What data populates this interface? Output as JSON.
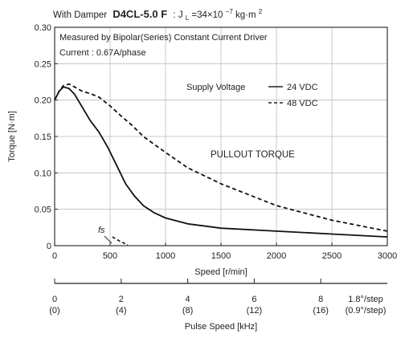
{
  "chart_data": {
    "type": "line",
    "title": {
      "prefix": "With Damper",
      "model": "D4CL-5.0 F",
      "inertia": "J",
      "inertia_sub": "L",
      "inertia_eq": "=34×10",
      "inertia_exp": "−7",
      "inertia_unit": "kg·m",
      "inertia_unit_exp": "2"
    },
    "notes": [
      "Measured by Bipolar(Series) Constant Current Driver",
      "Current : 0.67A/phase"
    ],
    "xlabel": "Speed  [r/min]",
    "ylabel": "Torque  [N·m]",
    "xlim": [
      0,
      3000
    ],
    "ylim": [
      0,
      0.3
    ],
    "x_ticks": [
      "0",
      "500",
      "1000",
      "1500",
      "2000",
      "2500",
      "3000"
    ],
    "y_ticks": [
      "0",
      "0.05",
      "0.10",
      "0.15",
      "0.20",
      "0.25",
      "0.30"
    ],
    "grid": true,
    "legend": {
      "title": "Supply Voltage",
      "position": "upper-right",
      "entries": [
        "24 VDC",
        "48 VDC"
      ]
    },
    "annotations": [
      "PULLOUT TORQUE",
      "fs"
    ],
    "series": [
      {
        "name": "24 VDC",
        "style": "solid",
        "x": [
          0,
          40,
          80,
          130,
          180,
          250,
          320,
          400,
          480,
          560,
          640,
          720,
          800,
          900,
          1000,
          1200,
          1500,
          2000,
          2500,
          3000
        ],
        "y": [
          0.2,
          0.212,
          0.218,
          0.216,
          0.208,
          0.19,
          0.172,
          0.156,
          0.135,
          0.11,
          0.085,
          0.068,
          0.055,
          0.045,
          0.038,
          0.03,
          0.024,
          0.02,
          0.016,
          0.012
        ]
      },
      {
        "name": "48 VDC",
        "style": "dashed",
        "x": [
          0,
          40,
          80,
          130,
          180,
          250,
          320,
          400,
          500,
          600,
          700,
          800,
          1000,
          1200,
          1500,
          2000,
          2500,
          3000
        ],
        "y": [
          0.2,
          0.212,
          0.22,
          0.222,
          0.218,
          0.212,
          0.209,
          0.204,
          0.192,
          0.178,
          0.165,
          0.15,
          0.128,
          0.107,
          0.085,
          0.055,
          0.035,
          0.02
        ]
      }
    ],
    "fs_curve": {
      "x": [
        520,
        590,
        660
      ],
      "y": [
        0.012,
        0.006,
        0.001
      ]
    },
    "secondary_axis": {
      "label": "Pulse Speed  [kHz]",
      "ticks": [
        {
          "x": 0,
          "top": "0",
          "bottom": "(0)"
        },
        {
          "x": 600,
          "top": "2",
          "bottom": "(4)"
        },
        {
          "x": 1200,
          "top": "4",
          "bottom": "(8)"
        },
        {
          "x": 1800,
          "top": "6",
          "bottom": "(12)"
        },
        {
          "x": 2400,
          "top": "8",
          "bottom": "(16)"
        }
      ],
      "step_labels": [
        "1.8°/step",
        "(0.9°/step)"
      ]
    }
  }
}
